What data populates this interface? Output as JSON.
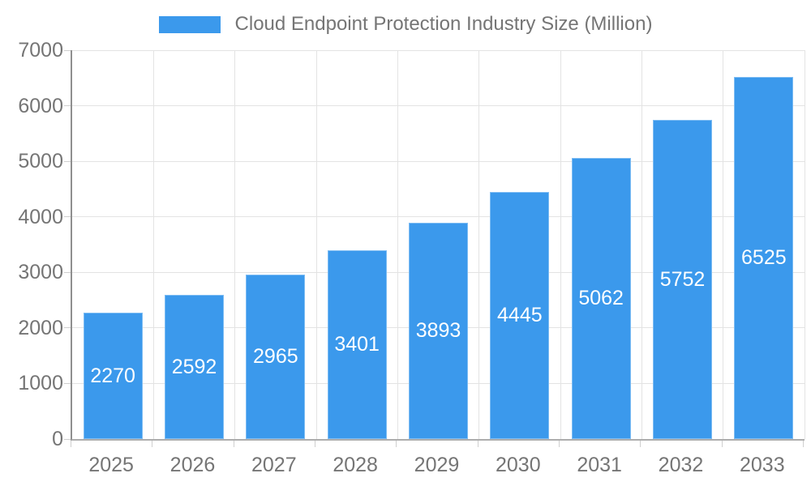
{
  "legend": {
    "label": "Cloud Endpoint Protection Industry Size (Million)"
  },
  "colors": {
    "bar_fill": "#3B99EC",
    "bar_border": "#7DBCF3",
    "axis_text": "#757575",
    "value_text": "#FFFFFF",
    "gridline": "#E3E3E3",
    "y_axis_line": "#8F8F8F",
    "x_axis_line": "#ADADAD",
    "tick_mark": "#CFCFCF",
    "background": "#FFFFFF"
  },
  "chart_data": {
    "type": "bar",
    "title": "Cloud Endpoint Protection Industry Size (Million)",
    "categories": [
      "2025",
      "2026",
      "2027",
      "2028",
      "2029",
      "2030",
      "2031",
      "2032",
      "2033"
    ],
    "values": [
      2270,
      2592,
      2965,
      3401,
      3893,
      4445,
      5062,
      5752,
      6525
    ],
    "value_labels": [
      "2270",
      "2592",
      "2965",
      "3401",
      "3893",
      "4445",
      "5062",
      "5752",
      "6525"
    ],
    "xlabel": "",
    "ylabel": "",
    "ylim": [
      0,
      7000
    ],
    "y_ticks": [
      0,
      1000,
      2000,
      3000,
      4000,
      5000,
      6000,
      7000
    ],
    "grid": true,
    "legend_position": "top",
    "value_label_position": "inside-center"
  }
}
